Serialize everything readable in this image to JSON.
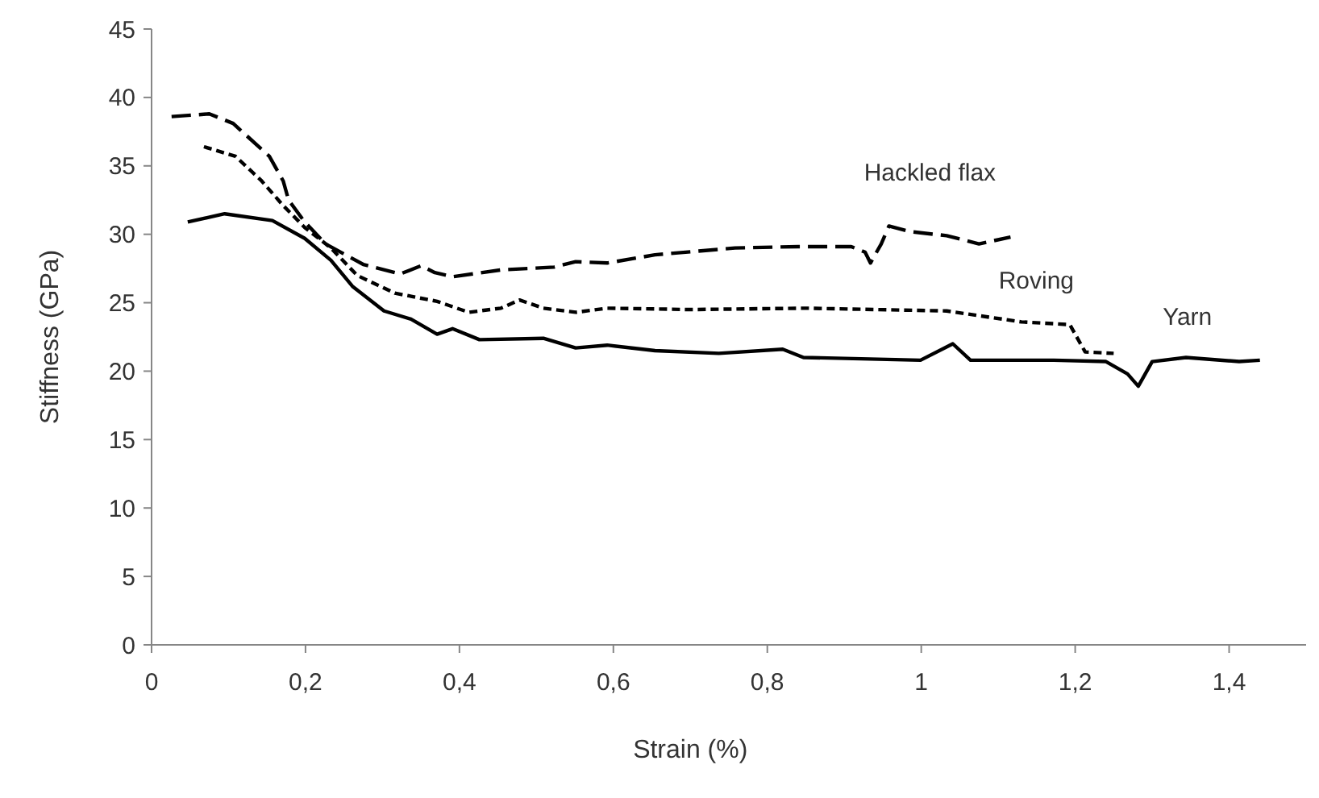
{
  "chart_data": {
    "type": "line",
    "xlabel": "Strain (%)",
    "ylabel": "Stiffness (GPa)",
    "xlim": [
      0,
      1.5
    ],
    "xticks": [
      0,
      {
        "value": 0.2,
        "label": "0,2"
      },
      {
        "value": 0.4,
        "label": "0,4"
      },
      {
        "value": 0.6,
        "label": "0,6"
      },
      {
        "value": 0.8,
        "label": "0,8"
      },
      1,
      {
        "value": 1.2,
        "label": "1,2"
      },
      {
        "value": 1.4,
        "label": "1,4"
      }
    ],
    "ylim": [
      0,
      45
    ],
    "yticks": [
      0,
      5,
      10,
      15,
      20,
      25,
      30,
      35,
      40,
      45
    ],
    "grid": false,
    "series": [
      {
        "name": "Hackled flax",
        "color": "#000000",
        "line_style": "dashed",
        "x": [
          0.026,
          0.075,
          0.106,
          0.153,
          0.171,
          0.178,
          0.199,
          0.226,
          0.275,
          0.323,
          0.35,
          0.368,
          0.391,
          0.454,
          0.523,
          0.551,
          0.592,
          0.654,
          0.758,
          0.84,
          0.909,
          0.927,
          0.934,
          0.948,
          0.958,
          0.985,
          1.033,
          1.075,
          1.116
        ],
        "values": [
          38.6,
          38.8,
          38.1,
          35.7,
          33.9,
          32.5,
          30.9,
          29.3,
          27.8,
          27.1,
          27.7,
          27.2,
          26.9,
          27.4,
          27.6,
          28.0,
          27.9,
          28.5,
          29.0,
          29.1,
          29.1,
          28.7,
          27.9,
          29.3,
          30.6,
          30.2,
          29.9,
          29.3,
          29.8
        ]
      },
      {
        "name": "Roving",
        "color": "#000000",
        "line_style": "dotted",
        "x": [
          0.068,
          0.109,
          0.143,
          0.171,
          0.199,
          0.233,
          0.267,
          0.316,
          0.371,
          0.412,
          0.454,
          0.478,
          0.509,
          0.551,
          0.592,
          0.7,
          0.85,
          1.033,
          1.13,
          1.193,
          1.213,
          1.25
        ],
        "values": [
          36.4,
          35.7,
          33.9,
          32.1,
          30.5,
          29.0,
          27.0,
          25.7,
          25.1,
          24.3,
          24.6,
          25.2,
          24.6,
          24.3,
          24.6,
          24.5,
          24.6,
          24.4,
          23.6,
          23.4,
          21.4,
          21.3
        ]
      },
      {
        "name": "Yarn",
        "color": "#000000",
        "line_style": "solid",
        "x": [
          0.047,
          0.095,
          0.157,
          0.199,
          0.233,
          0.261,
          0.302,
          0.337,
          0.371,
          0.391,
          0.426,
          0.509,
          0.551,
          0.592,
          0.654,
          0.737,
          0.82,
          0.847,
          0.999,
          1.041,
          1.064,
          1.172,
          1.24,
          1.268,
          1.282,
          1.3,
          1.344,
          1.413,
          1.44
        ],
        "values": [
          30.9,
          31.5,
          31.0,
          29.7,
          28.1,
          26.2,
          24.4,
          23.8,
          22.7,
          23.1,
          22.3,
          22.4,
          21.7,
          21.9,
          21.5,
          21.3,
          21.6,
          21.0,
          20.8,
          22.0,
          20.8,
          20.8,
          20.7,
          19.8,
          18.9,
          20.7,
          21.0,
          20.7,
          20.8
        ]
      }
    ]
  }
}
